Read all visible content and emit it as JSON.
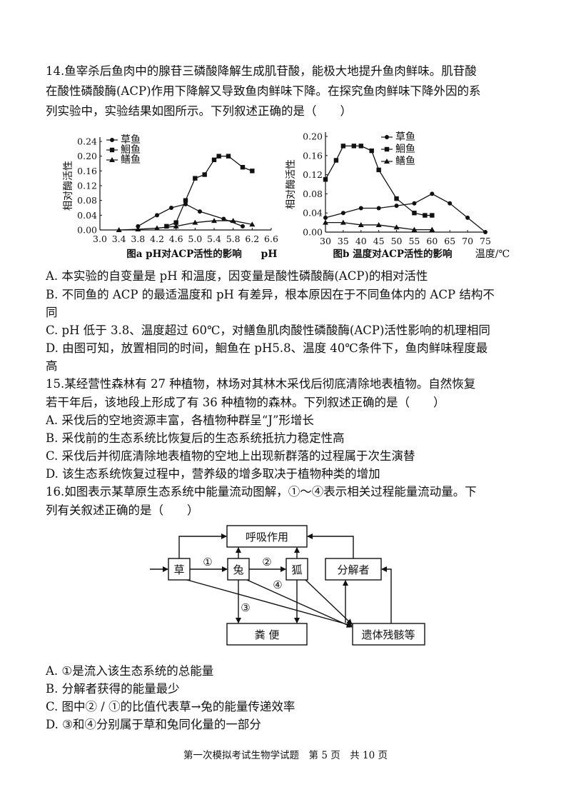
{
  "q14": {
    "lines": [
      "14.鱼宰杀后鱼肉中的腺苷三磷酸降解生成肌苷酸，能极大地提升鱼肉鲜味。肌苷酸",
      "在酸性磷酸酶(ACP)作用下降解又导致鱼肉鲜味下降。在探究鱼肉鲜味下降外因的系",
      "列实验中，实验结果如图所示。下列叙述正确的是（　　）"
    ],
    "options": [
      "A.  本实验的自变量是 pH 和温度，因变量是酸性磷酸酶(ACP)的相对活性",
      "B.  不同鱼的 ACP 的最适温度和 pH 有差异，根本原因在于不同鱼体内的 ACP 结构不",
      "同",
      "C.  pH 低于 3.8、温度超过 60℃，对鳝鱼肌肉酸性磷酸酶(ACP)活性影响的机理相同",
      "D.  由图可知，放置相同的时间，鮰鱼在 pH5.8、温度 40℃条件下，鱼肉鲜味程度最",
      "高"
    ]
  },
  "chart_data": [
    {
      "type": "line",
      "title": "图a pH对ACP活性的影响",
      "xlabel": "pH",
      "ylabel": "相对酶活性",
      "xlim": [
        3.0,
        6.6
      ],
      "ylim": [
        0,
        0.24
      ],
      "x_ticks": [
        "3.0",
        "3.4",
        "3.8",
        "4.2",
        "4.6",
        "5.0",
        "5.4",
        "5.8",
        "6.2",
        "6.6"
      ],
      "y_ticks": [
        "0.00",
        "0.04",
        "0.08",
        "0.12",
        "0.16",
        "0.20",
        "0.24"
      ],
      "legend": [
        "草鱼",
        "鮰鱼",
        "鳝鱼"
      ],
      "legend_position": "top-left",
      "series": [
        {
          "name": "草鱼",
          "marker": "circle",
          "x": [
            3.8,
            4.2,
            4.5,
            4.8,
            5.1,
            5.6,
            6.0
          ],
          "y": [
            0.01,
            0.04,
            0.06,
            0.07,
            0.05,
            0.03,
            0.01
          ]
        },
        {
          "name": "鮰鱼",
          "marker": "square",
          "x": [
            4.4,
            4.6,
            4.8,
            5.0,
            5.2,
            5.4,
            5.5,
            5.7,
            6.0,
            6.2
          ],
          "y": [
            0.01,
            0.02,
            0.08,
            0.14,
            0.15,
            0.19,
            0.2,
            0.2,
            0.17,
            0.16
          ]
        },
        {
          "name": "鳝鱼",
          "marker": "triangle",
          "x": [
            3.4,
            3.8,
            4.2,
            4.6,
            5.0,
            5.4,
            5.8,
            6.2
          ],
          "y": [
            0.0,
            0.002,
            0.005,
            0.01,
            0.02,
            0.025,
            0.025,
            0.015
          ]
        }
      ]
    },
    {
      "type": "line",
      "title": "图b 温度对ACP活性的影响",
      "xlabel": "温度/℃",
      "ylabel": "相对酶活性",
      "xlim": [
        30,
        75
      ],
      "ylim": [
        0,
        0.2
      ],
      "x_ticks": [
        "30",
        "35",
        "40",
        "45",
        "50",
        "55",
        "60",
        "65",
        "70",
        "75"
      ],
      "y_ticks": [
        "0.00",
        "0.04",
        "0.08",
        "0.12",
        "0.16",
        "0.20"
      ],
      "legend": [
        "草鱼",
        "鮰鱼",
        "鳝鱼"
      ],
      "legend_position": "top-right",
      "series": [
        {
          "name": "草鱼",
          "marker": "circle",
          "x": [
            30,
            35,
            40,
            45,
            50,
            55,
            60,
            65,
            70,
            75
          ],
          "y": [
            0.03,
            0.04,
            0.05,
            0.05,
            0.055,
            0.06,
            0.08,
            0.06,
            0.03,
            0.0
          ]
        },
        {
          "name": "鮰鱼",
          "marker": "square",
          "x": [
            30,
            33,
            35,
            38,
            40,
            43,
            45,
            50,
            55,
            58,
            60
          ],
          "y": [
            0.11,
            0.15,
            0.18,
            0.18,
            0.18,
            0.17,
            0.13,
            0.07,
            0.04,
            0.035,
            0.035
          ]
        },
        {
          "name": "鳝鱼",
          "marker": "triangle",
          "x": [
            30,
            35,
            40,
            45,
            50,
            55,
            60
          ],
          "y": [
            0.02,
            0.02,
            0.015,
            0.015,
            0.01,
            0.005,
            0.005
          ]
        }
      ]
    }
  ],
  "q15": {
    "lines": [
      "15.某经营性森林有 27 种植物，林场对其林木采伐后彻底清除地表植物。自然恢复",
      "若干年后，该地段上形成了有 36 种植物的森林。下列叙述正确的是（　　）"
    ],
    "options": [
      "A.  采伐后的空地资源丰富，各植物种群呈“J”形增长",
      "B.  采伐前的生态系统比恢复后的生态系统抵抗力稳定性高",
      "C.  采伐后并彻底清除地表植物的空地上出现新群落的过程属于次生演替",
      "D.  该生态系统恢复过程中，营养级的增多取决于植物种类的增加"
    ]
  },
  "q16": {
    "lines": [
      "16.如图表示某草原生态系统中能量流动图解，①～④表示相关过程能量流动量。下",
      "列有关叙述正确的是（　　）"
    ],
    "diagram": {
      "respiration": "呼吸作用",
      "grass": "草",
      "rabbit": "兔",
      "fox": "狐",
      "decomposer": "分解者",
      "feces": "粪 便",
      "remains": "遗体残骸等",
      "n1": "①",
      "n2": "②",
      "n3": "③",
      "n4": "④"
    },
    "options": [
      "A.  ①是流入该生态系统的总能量",
      "B.  分解者获得的能量最少",
      "C.  图中② / ①的比值代表草→兔的能量传递效率",
      "D.  ③和④分别属于草和兔同化量的一部分"
    ]
  },
  "footer": "第一次模拟考试生物学试题　第 5 页　共 10 页"
}
